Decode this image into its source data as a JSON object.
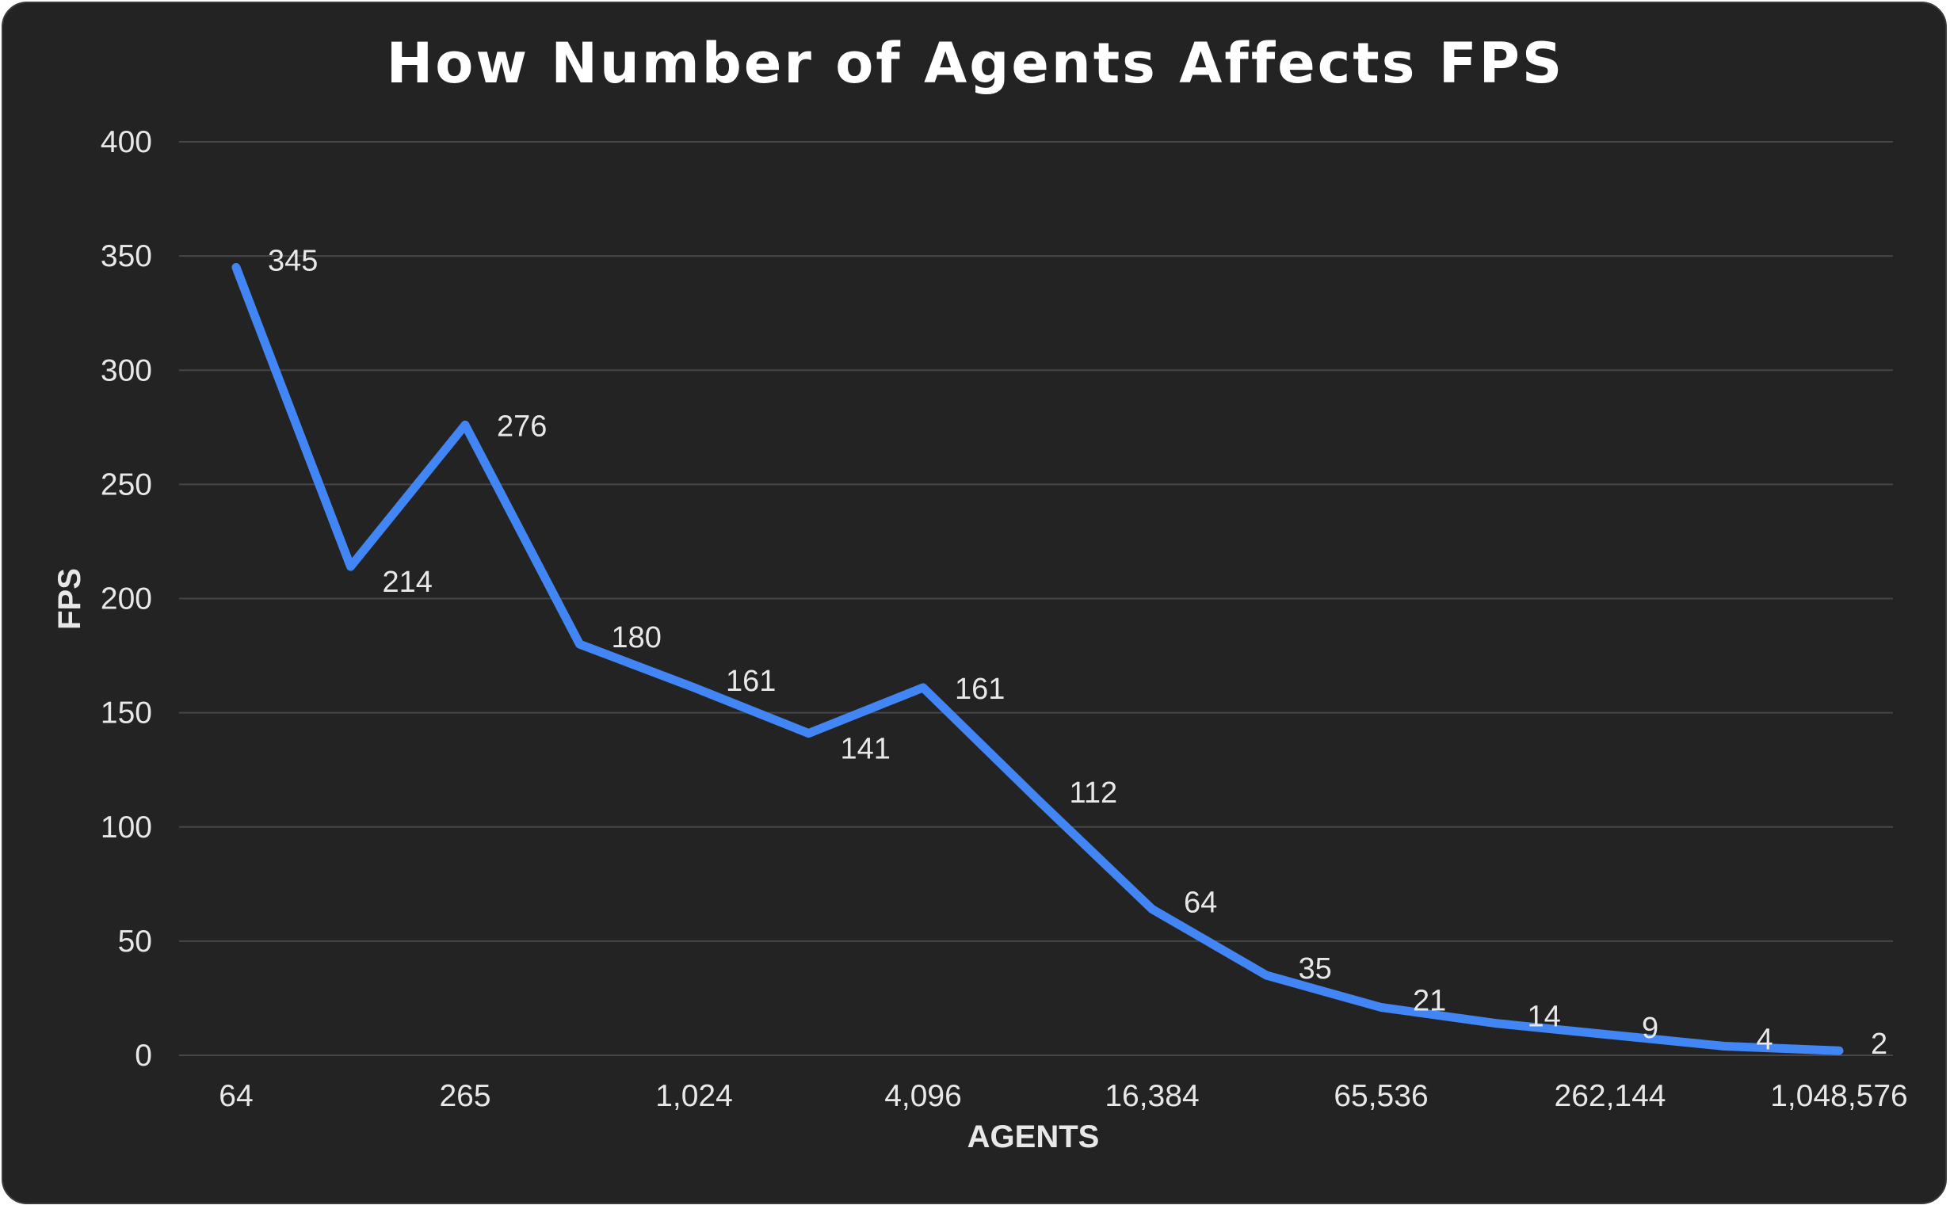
{
  "chart_data": {
    "type": "line",
    "title": "How Number of Agents Affects FPS",
    "xlabel": "AGENTS",
    "ylabel": "FPS",
    "ylim": [
      0,
      400
    ],
    "yticks": [
      0,
      50,
      100,
      150,
      200,
      250,
      300,
      350,
      400
    ],
    "x_tick_labels": [
      "64",
      "265",
      "1,024",
      "4,096",
      "16,384",
      "65,536",
      "262,144",
      "1,048,576"
    ],
    "values": [
      345,
      214,
      276,
      180,
      161,
      141,
      161,
      112,
      64,
      35,
      21,
      14,
      9,
      4,
      2
    ],
    "data_labels": [
      "345",
      "214",
      "276",
      "180",
      "161",
      "141",
      "161",
      "112",
      "64",
      "35",
      "21",
      "14",
      "9",
      "4",
      "2"
    ],
    "grid": true,
    "legend": "none",
    "line_color": "#4285f4",
    "background_color": "#232323",
    "text_color": "#e8e8e8"
  }
}
